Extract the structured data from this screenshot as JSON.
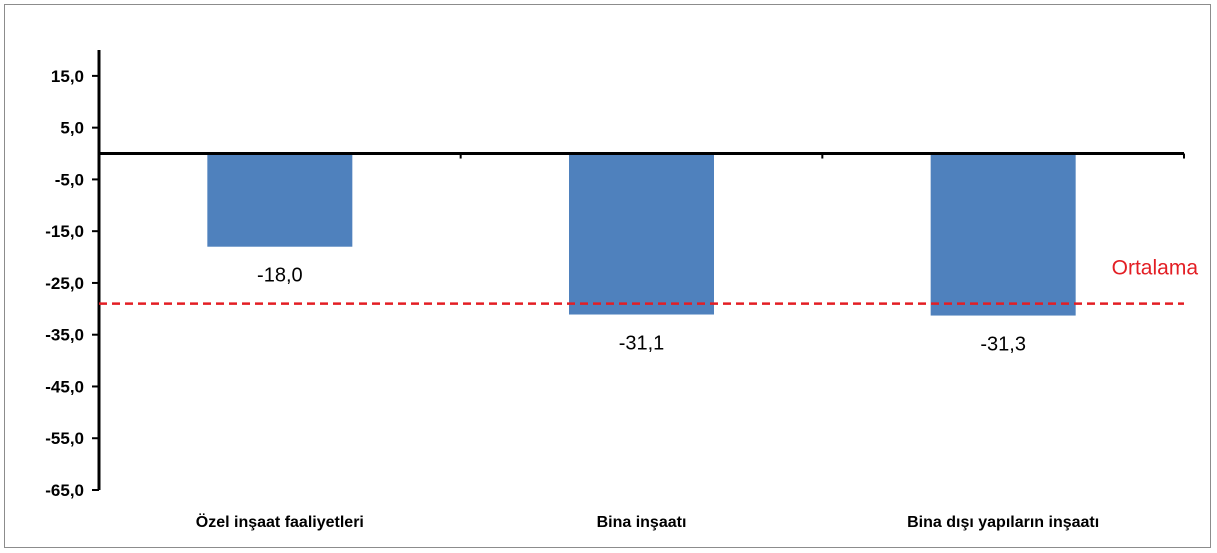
{
  "chart_data": {
    "type": "bar",
    "categories": [
      "Özel inşaat faaliyetleri",
      "Bina inşaatı",
      "Bina dışı yapıların inşaatı"
    ],
    "values": [
      -18.0,
      -31.1,
      -31.3
    ],
    "data_labels": [
      "-18,0",
      "-31,1",
      "-31,3"
    ],
    "ylim": [
      -65,
      20
    ],
    "yticks": [
      15,
      5,
      -5,
      -15,
      -25,
      -35,
      -45,
      -55,
      -65
    ],
    "ytick_labels": [
      "15,0",
      "5,0",
      "-5,0",
      "-15,0",
      "-25,0",
      "-35,0",
      "-45,0",
      "-55,0",
      "-65,0"
    ],
    "reference_line": {
      "label": "Ortalama",
      "value": -29.0,
      "color": "#e31e24",
      "style": "dashed"
    },
    "bar_color": "#4f81bd",
    "title": "",
    "xlabel": "",
    "ylabel": "",
    "grid": false,
    "legend": false
  }
}
